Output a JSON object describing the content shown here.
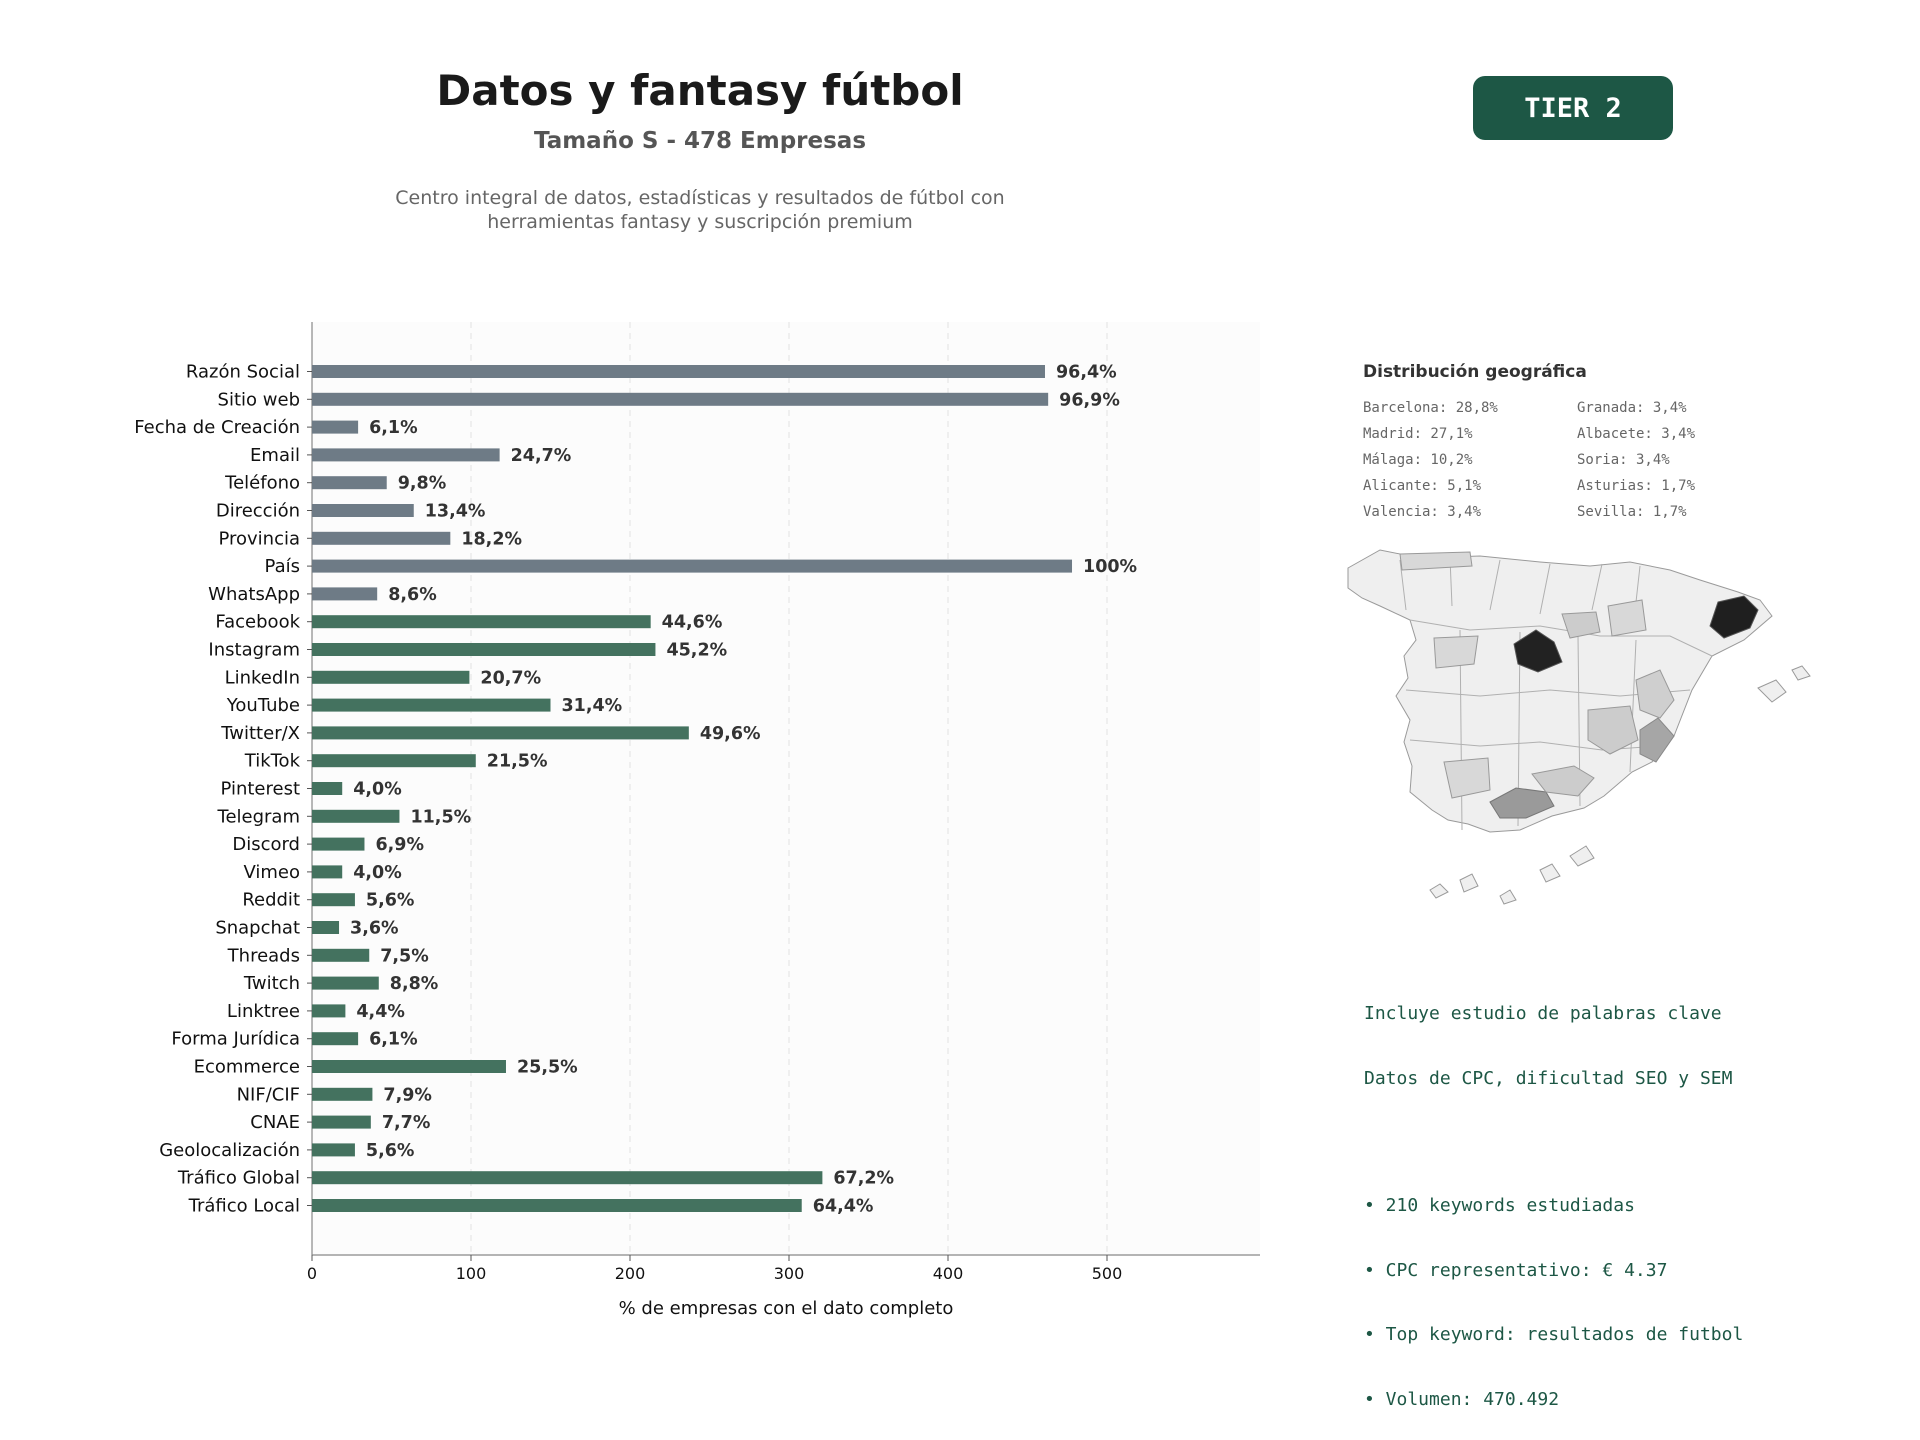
{
  "header": {
    "title": "Datos y fantasy fútbol",
    "subtitle": "Tamaño S - 478 Empresas",
    "description_line1": "Centro integral de datos, estadísticas y resultados de fútbol con",
    "description_line2": "herramientas fantasy y suscripción premium",
    "tier_badge": "TIER 2"
  },
  "colors": {
    "contact_bars": "#6e7b86",
    "social_bars": "#44725f",
    "badge": "#1d5745",
    "keywords_text": "#1d5745"
  },
  "chart_data": {
    "type": "bar",
    "orientation": "horizontal",
    "xlabel": "% de empresas con el dato completo",
    "xlim": [
      0,
      600
    ],
    "xticks": [
      0,
      100,
      200,
      300,
      400,
      500
    ],
    "grid": "vertical dashed",
    "categories": [
      "Razón Social",
      "Sitio web",
      "Fecha de Creación",
      "Email",
      "Teléfono",
      "Dirección",
      "Provincia",
      "País",
      "WhatsApp",
      "Facebook",
      "Instagram",
      "LinkedIn",
      "YouTube",
      "Twitter/X",
      "TikTok",
      "Pinterest",
      "Telegram",
      "Discord",
      "Vimeo",
      "Reddit",
      "Snapchat",
      "Threads",
      "Twitch",
      "Linktree",
      "Forma Jurídica",
      "Ecommerce",
      "NIF/CIF",
      "CNAE",
      "Geolocalización",
      "Tráfico Global",
      "Tráfico Local"
    ],
    "values": [
      461,
      463,
      29,
      118,
      47,
      64,
      87,
      478,
      41,
      213,
      216,
      99,
      150,
      237,
      103,
      19,
      55,
      33,
      19,
      27,
      17,
      36,
      42,
      21,
      29,
      122,
      38,
      37,
      27,
      321,
      308
    ],
    "labels": [
      "96,4%",
      "96,9%",
      "6,1%",
      "24,7%",
      "9,8%",
      "13,4%",
      "18,2%",
      "100%",
      "8,6%",
      "44,6%",
      "45,2%",
      "20,7%",
      "31,4%",
      "49,6%",
      "21,5%",
      "4,0%",
      "11,5%",
      "6,9%",
      "4,0%",
      "5,6%",
      "3,6%",
      "7,5%",
      "8,8%",
      "4,4%",
      "6,1%",
      "25,5%",
      "7,9%",
      "7,7%",
      "5,6%",
      "67,2%",
      "64,4%"
    ],
    "groups": [
      "contact",
      "contact",
      "contact",
      "contact",
      "contact",
      "contact",
      "contact",
      "contact",
      "contact",
      "social",
      "social",
      "social",
      "social",
      "social",
      "social",
      "social",
      "social",
      "social",
      "social",
      "social",
      "social",
      "social",
      "social",
      "social",
      "social",
      "social",
      "social",
      "social",
      "social",
      "social",
      "social"
    ]
  },
  "geo": {
    "title": "Distribución geográfica",
    "items": [
      "Barcelona: 28,8%",
      "Granada: 3,4%",
      "Madrid: 27,1%",
      "Albacete: 3,4%",
      "Málaga: 10,2%",
      "Soria: 3,4%",
      "Alicante: 5,1%",
      "Asturias: 1,7%",
      "Valencia: 3,4%",
      "Sevilla: 1,7%"
    ]
  },
  "keywords": {
    "line1": "Incluye estudio de palabras clave",
    "line2": "Datos de CPC, dificultad SEO y SEM",
    "bullet1": "• 210 keywords estudiadas",
    "bullet2": "• CPC representativo: € 4.37",
    "bullet3": "• Top keyword: resultados de futbol",
    "bullet4": "• Volumen: 470.492"
  }
}
